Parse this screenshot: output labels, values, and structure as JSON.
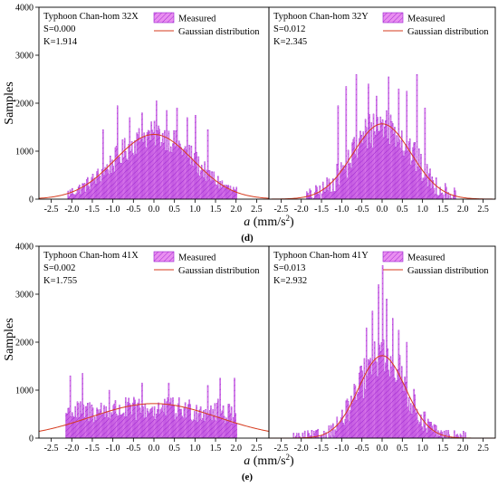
{
  "figure": {
    "ylabel": "Samples",
    "legend_measured": "Measured",
    "legend_gaussian": "Gaussian distribution",
    "colors": {
      "bar_fill": "#e98ef0",
      "bar_edge": "#9a1fd0",
      "curve": "#d63b1e",
      "frame": "#000000"
    }
  },
  "chart_data": [
    {
      "type": "bar",
      "panel": "d",
      "panel_label": "(d)",
      "xlabel": "a (mm/s²)",
      "title": "Typhoon Chan-hom 32X",
      "S": "S=0.000",
      "K": "K=1.914",
      "xlim": [
        -2.8,
        2.8
      ],
      "ylim": [
        0,
        4000
      ],
      "xticks": [
        -2.5,
        -2.0,
        -1.5,
        -1.0,
        -0.5,
        0.0,
        0.5,
        1.0,
        1.5,
        2.0,
        2.5
      ],
      "yticks": [
        0,
        1000,
        2000,
        3000,
        4000
      ],
      "data_range": [
        -2.1,
        2.0
      ],
      "gaussian": {
        "mu": 0.0,
        "sigma": 0.95,
        "peak": 1350
      },
      "noise": 280,
      "spikes": [
        [
          -0.9,
          1950
        ],
        [
          -0.6,
          1700
        ],
        [
          -0.3,
          1800
        ],
        [
          0.05,
          2050
        ],
        [
          0.3,
          1850
        ],
        [
          0.55,
          1900
        ],
        [
          0.8,
          1700
        ],
        [
          1.0,
          1750
        ],
        [
          -1.25,
          1450
        ],
        [
          1.3,
          1450
        ]
      ]
    },
    {
      "type": "bar",
      "panel": "d",
      "title": "Typhoon Chan-hom 32Y",
      "S": "S=0.012",
      "K": "K=2.345",
      "xlim": [
        -2.8,
        2.8
      ],
      "ylim": [
        0,
        4000
      ],
      "xticks": [
        -2.5,
        -2.0,
        -1.5,
        -1.0,
        -0.5,
        0.0,
        0.5,
        1.0,
        1.5,
        2.0,
        2.5
      ],
      "data_range": [
        -1.9,
        1.8
      ],
      "gaussian": {
        "mu": 0.0,
        "sigma": 0.72,
        "peak": 1570
      },
      "noise": 420,
      "spikes": [
        [
          -0.65,
          2600
        ],
        [
          -0.35,
          2400
        ],
        [
          0.15,
          2550
        ],
        [
          0.4,
          2300
        ],
        [
          0.85,
          2600
        ],
        [
          -0.9,
          2350
        ],
        [
          0.6,
          2250
        ],
        [
          -0.15,
          2150
        ],
        [
          -1.1,
          1950
        ],
        [
          1.05,
          1900
        ]
      ]
    },
    {
      "type": "bar",
      "panel": "e",
      "panel_label": "(e)",
      "xlabel": "a (mm/s²)",
      "title": "Typhoon Chan-hom 41X",
      "S": "S=0.002",
      "K": "K=1.755",
      "xlim": [
        -2.8,
        2.8
      ],
      "ylim": [
        0,
        4000
      ],
      "xticks": [
        -2.5,
        -2.0,
        -1.5,
        -1.0,
        -0.5,
        0.0,
        0.5,
        1.0,
        1.5,
        2.0,
        2.5
      ],
      "yticks": [
        0,
        1000,
        2000,
        3000,
        4000
      ],
      "data_range": [
        -2.15,
        2.0
      ],
      "uniform_level": 600,
      "gaussian": {
        "mu": 0.0,
        "sigma": 1.55,
        "peak": 720
      },
      "noise": 260,
      "spikes": [
        [
          -1.75,
          1350
        ],
        [
          -2.05,
          1300
        ],
        [
          1.95,
          1250
        ],
        [
          1.6,
          1250
        ],
        [
          -0.3,
          1150
        ],
        [
          0.35,
          1150
        ],
        [
          1.3,
          1100
        ],
        [
          -1.1,
          1000
        ]
      ]
    },
    {
      "type": "bar",
      "panel": "e",
      "title": "Typhoon Chan-hom 41Y",
      "S": "S=0.013",
      "K": "K=2.932",
      "xlim": [
        -2.8,
        2.8
      ],
      "ylim": [
        0,
        4000
      ],
      "xticks": [
        -2.5,
        -2.0,
        -1.5,
        -1.0,
        -0.5,
        0.0,
        0.5,
        1.0,
        1.5,
        2.0,
        2.5
      ],
      "data_range": [
        -2.2,
        2.05
      ],
      "gaussian": {
        "mu": 0.0,
        "sigma": 0.58,
        "peak": 1720
      },
      "noise": 420,
      "spikes": [
        [
          0.0,
          3600
        ],
        [
          -0.1,
          3200
        ],
        [
          0.1,
          2900
        ],
        [
          -0.25,
          2650
        ],
        [
          0.25,
          2500
        ],
        [
          -0.4,
          2300
        ],
        [
          0.4,
          2250
        ],
        [
          0.6,
          2000
        ]
      ]
    }
  ]
}
